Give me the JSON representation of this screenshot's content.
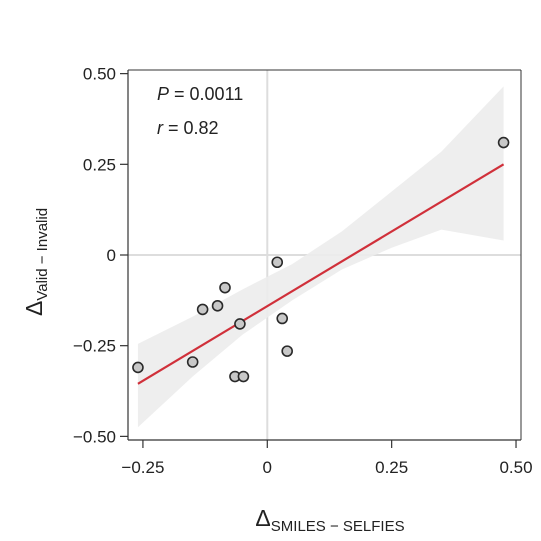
{
  "chart_data": {
    "type": "scatter",
    "xlim": [
      -0.28,
      0.51
    ],
    "ylim": [
      -0.51,
      0.51
    ],
    "x_ticks": [
      -0.25,
      0,
      0.25,
      0.5
    ],
    "x_tick_labels": [
      "−0.25",
      "0",
      "0.25",
      "0.50"
    ],
    "y_ticks": [
      0.5,
      0.25,
      0,
      -0.25,
      -0.5
    ],
    "y_tick_labels": [
      "0.50",
      "0.25",
      "0",
      "−0.25",
      "−0.50"
    ],
    "xlabel": {
      "symbol": "Δ",
      "subscript": "SMILES − SELFIES"
    },
    "ylabel": {
      "symbol": "Δ",
      "subscript": "Valid − Invalid"
    },
    "annotations": {
      "p_label": "P",
      "p_value": " = 0.0011",
      "r_label": "r",
      "r_value": " = 0.82"
    },
    "points": [
      {
        "x": -0.26,
        "y": -0.31
      },
      {
        "x": -0.15,
        "y": -0.295
      },
      {
        "x": -0.13,
        "y": -0.15
      },
      {
        "x": -0.1,
        "y": -0.14
      },
      {
        "x": -0.085,
        "y": -0.09
      },
      {
        "x": -0.065,
        "y": -0.335
      },
      {
        "x": -0.055,
        "y": -0.19
      },
      {
        "x": -0.048,
        "y": -0.335
      },
      {
        "x": 0.02,
        "y": -0.02
      },
      {
        "x": 0.03,
        "y": -0.175
      },
      {
        "x": 0.04,
        "y": -0.265
      },
      {
        "x": 0.475,
        "y": 0.31
      }
    ],
    "regression": {
      "x0": -0.26,
      "y0": -0.355,
      "x1": 0.475,
      "y1": 0.25
    },
    "confidence_band": {
      "x": [
        -0.26,
        -0.15,
        -0.05,
        0.05,
        0.15,
        0.25,
        0.35,
        0.475
      ],
      "upper": [
        -0.245,
        -0.17,
        -0.095,
        -0.025,
        0.065,
        0.175,
        0.285,
        0.465
      ],
      "lower": [
        -0.475,
        -0.335,
        -0.22,
        -0.125,
        -0.04,
        0.02,
        0.07,
        0.04
      ]
    },
    "reference_lines": {
      "x": 0,
      "y": 0
    },
    "colors": {
      "regression": "#d0303a",
      "band": "#ececec",
      "reference": "#dddddd",
      "point_fill": "#c8c8c8",
      "point_stroke": "#2a2a2a",
      "axis": "#333333"
    }
  }
}
